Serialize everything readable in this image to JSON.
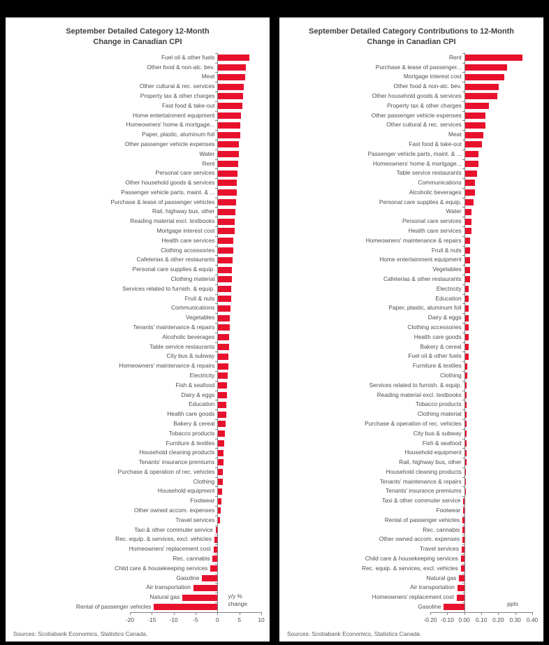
{
  "page": {
    "background_color": "#000000",
    "panel_color": "#ffffff",
    "accent_color": "#e8112d"
  },
  "chart_data": [
    {
      "type": "bar",
      "orientation": "horizontal",
      "title_line1": "September Detailed Category 12-Month",
      "title_line2": "Change in Canadian CPI",
      "unit_note": "y/y %\nchange",
      "source": "Sources: Scotiabank Economics, Statistics Canada.",
      "bar_color": "#e8112d",
      "xlim": [
        -20,
        10
      ],
      "xtick_values": [
        -20,
        -15,
        -10,
        -5,
        0,
        5,
        10
      ],
      "xtick_labels": [
        "-20",
        "-15",
        "-10",
        "-5",
        "0",
        "5",
        "10"
      ],
      "legend": "none",
      "grid": false,
      "categories": [
        "Fuel oil & other fuels",
        "Other food & non-alc. bev.",
        "Meat",
        "Other cultural & rec. services",
        "Property tax & other charges",
        "Fast food & take-out",
        "Home entertainment equipment",
        "Homeowners' home & mortgage...",
        "Paper, plastic, aluminum foil",
        "Other passenger vehicle expenses",
        "Water",
        "Rent",
        "Personal care services",
        "Other household goods & services",
        "Passenger vehicle parts, maint. & ...",
        "Purchase & lease of passenger vehicles",
        "Rail, highway bus, other",
        "Reading material excl. textbooks",
        "Mortgage interest cost",
        "Health care services",
        "Clothing accessories",
        "Cafeterias & other restaurants",
        "Personal care supplies & equip.",
        "Clothing material",
        "Services related to furnish. & equip.",
        "Fruit & nuts",
        "Communications",
        "Vegetables",
        "Tenants' maintenance & repairs",
        "Alcoholic beverages",
        "Table service restaurants",
        "City bus & subway",
        "Homeowners' maintenance & repairs",
        "Electricity",
        "Fish & seafood",
        "Dairy & eggs",
        "Education",
        "Health care goods",
        "Bakery & cereal",
        "Tobacco products",
        "Furniture & textiles",
        "Household cleaning products",
        "Tenants' insurance premiums",
        "Purchase & operation of rec. vehicles",
        "Clothing",
        "Household equipment",
        "Footwear",
        "Other owned accom. expenses",
        "Travel services",
        "Taxi & other commuter service",
        "Rec. equip. & services, excl. vehicles",
        "Homeowners' replacement cost",
        "Rec. cannabis",
        "Child care & housekeeping services",
        "Gasoline",
        "Air transportation",
        "Natural gas",
        "Rental of passenger vehicles"
      ],
      "values": [
        7.2,
        6.3,
        6.2,
        5.9,
        5.7,
        5.6,
        5.2,
        5.1,
        5.0,
        4.8,
        4.7,
        4.6,
        4.4,
        4.3,
        4.2,
        4.1,
        3.9,
        3.8,
        3.7,
        3.5,
        3.4,
        3.3,
        3.2,
        3.1,
        3.0,
        2.9,
        2.8,
        2.7,
        2.6,
        2.5,
        2.5,
        2.4,
        2.3,
        2.2,
        2.1,
        2.0,
        1.9,
        1.8,
        1.7,
        1.6,
        1.4,
        1.3,
        1.2,
        1.1,
        1.0,
        0.9,
        0.8,
        0.6,
        0.4,
        -0.4,
        -0.7,
        -0.9,
        -1.1,
        -1.6,
        -3.5,
        -5.5,
        -8.0,
        -14.5
      ]
    },
    {
      "type": "bar",
      "orientation": "horizontal",
      "title_line1": "September Detailed Category Contributions to 12-Month",
      "title_line2": "Change in Canadian CPI",
      "unit_note": "ppts",
      "source": "Sources: Scotiabank Economics, Statistics Canada.",
      "bar_color": "#e8112d",
      "xlim": [
        -0.2,
        0.4
      ],
      "xtick_values": [
        -0.2,
        -0.1,
        0.0,
        0.1,
        0.2,
        0.3,
        0.4
      ],
      "xtick_labels": [
        "-0.20",
        "-0.10",
        "0.00",
        "0.10",
        "0.20",
        "0.30",
        "0.40"
      ],
      "legend": "none",
      "grid": false,
      "categories": [
        "Rent",
        "Purchase & lease of passenger...",
        "Mortgage interest cost",
        "Other food & non-alc. bev.",
        "Other household goods & services",
        "Property tax & other charges",
        "Other passenger vehicle expenses",
        "Other cultural & rec. services",
        "Meat",
        "Fast food & take-out",
        "Passenger vehicle parts, maint. & ...",
        "Homeowners' home & mortgage...",
        "Table service restaurants",
        "Communications",
        "Alcoholic beverages",
        "Personal care supplies & equip.",
        "Water",
        "Personal care services",
        "Health care services",
        "Homeowners' maintenance & repairs",
        "Fruit & nuts",
        "Home entertainment equipment",
        "Vegetables",
        "Cafeterias & other restaurants",
        "Electricity",
        "Education",
        "Paper, plastic, aluminum foil",
        "Dairy & eggs",
        "Clothing accessories",
        "Health care goods",
        "Bakery & cereal",
        "Fuel oil & other fuels",
        "Furniture & textiles",
        "Clothing",
        "Services related to furnish. & equip.",
        "Reading material excl. textbooks",
        "Tobacco products",
        "Clothing material",
        "Purchase & operation of rec. vehicles",
        "City bus & subway",
        "Fish & seafood",
        "Household equipment",
        "Rail, highway bus, other",
        "Household cleaning products",
        "Tenants' maintenance & repairs",
        "Tenants' insurance premiums",
        "Taxi & other commuter service",
        "Footwear",
        "Rental of passenger vehicles",
        "Rec. cannabis",
        "Other owned accom. expenses",
        "Travel services",
        "Child care & housekeeping services",
        "Rec. equip. & services, excl. vehicles",
        "Natural gas",
        "Air transportation",
        "Homeowners' replacement cost",
        "Gasoline"
      ],
      "values": [
        0.34,
        0.25,
        0.23,
        0.2,
        0.19,
        0.14,
        0.12,
        0.12,
        0.11,
        0.1,
        0.08,
        0.08,
        0.07,
        0.06,
        0.06,
        0.05,
        0.04,
        0.04,
        0.04,
        0.03,
        0.03,
        0.03,
        0.03,
        0.03,
        0.02,
        0.02,
        0.02,
        0.02,
        0.02,
        0.02,
        0.02,
        0.02,
        0.015,
        0.015,
        0.01,
        0.01,
        0.01,
        0.01,
        0.01,
        0.01,
        0.01,
        0.01,
        0.01,
        0.005,
        0.005,
        0.005,
        -0.005,
        -0.005,
        -0.01,
        -0.01,
        -0.01,
        -0.015,
        -0.02,
        -0.02,
        -0.03,
        -0.04,
        -0.045,
        -0.12
      ]
    }
  ]
}
